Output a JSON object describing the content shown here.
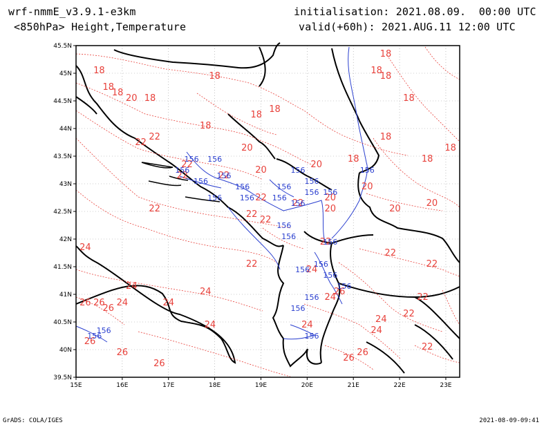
{
  "header": {
    "model": "wrf-nmmE_v3.9.1-e3km",
    "field": "<850hPa> Height,Temperature",
    "init": "initialisation: 2021.08.09.  00:00 UTC",
    "valid": "valid(+60h): 2021.AUG.11 12:00 UTC"
  },
  "footer": {
    "credit": "GrADS: COLA/IGES",
    "timestamp": "2021-08-09-09:41"
  },
  "map": {
    "lon_range": [
      15,
      23.3
    ],
    "lat_range": [
      39.5,
      45.5
    ],
    "lon_ticks": [
      "15E",
      "16E",
      "17E",
      "18E",
      "19E",
      "20E",
      "21E",
      "22E",
      "23E"
    ],
    "lat_ticks": [
      "39.5N",
      "40N",
      "40.5N",
      "41N",
      "41.5N",
      "42N",
      "42.5N",
      "43N",
      "43.5N",
      "44N",
      "44.5N",
      "45N",
      "45.5N"
    ],
    "colors": {
      "temperature": "#e8403a",
      "height": "#2a3fcf",
      "coast": "#000000",
      "grid": "#999999"
    },
    "temperature_labels": [
      {
        "text": "18",
        "lon": 18.0,
        "lat": 44.9
      },
      {
        "text": "18",
        "lon": 15.5,
        "lat": 45.0
      },
      {
        "text": "18",
        "lon": 15.7,
        "lat": 44.7
      },
      {
        "text": "18",
        "lon": 15.9,
        "lat": 44.6
      },
      {
        "text": "18",
        "lon": 16.6,
        "lat": 44.5
      },
      {
        "text": "18",
        "lon": 17.8,
        "lat": 44.0
      },
      {
        "text": "18",
        "lon": 18.9,
        "lat": 44.2
      },
      {
        "text": "18",
        "lon": 19.3,
        "lat": 44.3
      },
      {
        "text": "18",
        "lon": 21.7,
        "lat": 45.3
      },
      {
        "text": "18",
        "lon": 21.5,
        "lat": 45.0
      },
      {
        "text": "18",
        "lon": 21.7,
        "lat": 44.9
      },
      {
        "text": "18",
        "lon": 22.2,
        "lat": 44.5
      },
      {
        "text": "18",
        "lon": 21.7,
        "lat": 43.8
      },
      {
        "text": "18",
        "lon": 22.6,
        "lat": 43.4
      },
      {
        "text": "18",
        "lon": 23.1,
        "lat": 43.6
      },
      {
        "text": "18",
        "lon": 21.0,
        "lat": 43.4
      },
      {
        "text": "20",
        "lon": 16.2,
        "lat": 44.5
      },
      {
        "text": "20",
        "lon": 18.7,
        "lat": 43.6
      },
      {
        "text": "20",
        "lon": 19.0,
        "lat": 43.2
      },
      {
        "text": "20",
        "lon": 20.2,
        "lat": 43.3
      },
      {
        "text": "20",
        "lon": 20.5,
        "lat": 42.7
      },
      {
        "text": "20",
        "lon": 20.5,
        "lat": 42.5
      },
      {
        "text": "20",
        "lon": 21.3,
        "lat": 42.9
      },
      {
        "text": "20",
        "lon": 21.9,
        "lat": 42.5
      },
      {
        "text": "20",
        "lon": 22.7,
        "lat": 42.6
      },
      {
        "text": "22",
        "lon": 16.4,
        "lat": 43.7
      },
      {
        "text": "22",
        "lon": 16.7,
        "lat": 43.8
      },
      {
        "text": "22",
        "lon": 17.4,
        "lat": 43.3
      },
      {
        "text": "22",
        "lon": 17.3,
        "lat": 43.1
      },
      {
        "text": "22",
        "lon": 18.2,
        "lat": 43.1
      },
      {
        "text": "22",
        "lon": 16.7,
        "lat": 42.5
      },
      {
        "text": "22",
        "lon": 18.8,
        "lat": 42.4
      },
      {
        "text": "22",
        "lon": 19.1,
        "lat": 42.3
      },
      {
        "text": "22",
        "lon": 20.4,
        "lat": 41.9
      },
      {
        "text": "22",
        "lon": 19.8,
        "lat": 42.6
      },
      {
        "text": "22",
        "lon": 21.8,
        "lat": 41.7
      },
      {
        "text": "22",
        "lon": 22.7,
        "lat": 41.5
      },
      {
        "text": "22",
        "lon": 22.5,
        "lat": 40.9
      },
      {
        "text": "22",
        "lon": 22.2,
        "lat": 40.6
      },
      {
        "text": "22",
        "lon": 22.6,
        "lat": 40.0
      },
      {
        "text": "22",
        "lon": 18.8,
        "lat": 41.5
      },
      {
        "text": "22",
        "lon": 19.0,
        "lat": 42.7
      },
      {
        "text": "24",
        "lon": 15.2,
        "lat": 41.8
      },
      {
        "text": "24",
        "lon": 16.2,
        "lat": 41.1
      },
      {
        "text": "24",
        "lon": 16.0,
        "lat": 40.8
      },
      {
        "text": "24",
        "lon": 17.8,
        "lat": 41.0
      },
      {
        "text": "24",
        "lon": 17.0,
        "lat": 40.8
      },
      {
        "text": "24",
        "lon": 17.9,
        "lat": 40.4
      },
      {
        "text": "24",
        "lon": 20.1,
        "lat": 41.4
      },
      {
        "text": "24",
        "lon": 20.5,
        "lat": 40.9
      },
      {
        "text": "24",
        "lon": 20.0,
        "lat": 40.4
      },
      {
        "text": "24",
        "lon": 21.5,
        "lat": 40.3
      },
      {
        "text": "24",
        "lon": 21.6,
        "lat": 40.5
      },
      {
        "text": "26",
        "lon": 15.2,
        "lat": 40.8
      },
      {
        "text": "26",
        "lon": 15.5,
        "lat": 40.8
      },
      {
        "text": "26",
        "lon": 15.7,
        "lat": 40.7
      },
      {
        "text": "26",
        "lon": 15.3,
        "lat": 40.1
      },
      {
        "text": "26",
        "lon": 16.0,
        "lat": 39.9
      },
      {
        "text": "26",
        "lon": 16.8,
        "lat": 39.7
      },
      {
        "text": "26",
        "lon": 20.9,
        "lat": 39.8
      },
      {
        "text": "26",
        "lon": 21.2,
        "lat": 39.9
      },
      {
        "text": "26",
        "lon": 20.7,
        "lat": 41.0
      }
    ],
    "height_labels": [
      {
        "text": "156",
        "lon": 17.5,
        "lat": 43.4
      },
      {
        "text": "156",
        "lon": 18.0,
        "lat": 43.4
      },
      {
        "text": "156",
        "lon": 17.3,
        "lat": 43.2
      },
      {
        "text": "156",
        "lon": 17.7,
        "lat": 43.0
      },
      {
        "text": "156",
        "lon": 18.2,
        "lat": 43.1
      },
      {
        "text": "156",
        "lon": 18.0,
        "lat": 42.7
      },
      {
        "text": "156",
        "lon": 18.6,
        "lat": 42.9
      },
      {
        "text": "156",
        "lon": 18.7,
        "lat": 42.7
      },
      {
        "text": "156",
        "lon": 19.8,
        "lat": 43.2
      },
      {
        "text": "156",
        "lon": 20.1,
        "lat": 43.0
      },
      {
        "text": "156",
        "lon": 19.5,
        "lat": 42.9
      },
      {
        "text": "156",
        "lon": 19.4,
        "lat": 42.7
      },
      {
        "text": "156",
        "lon": 20.1,
        "lat": 42.8
      },
      {
        "text": "156",
        "lon": 20.5,
        "lat": 42.8
      },
      {
        "text": "156",
        "lon": 19.8,
        "lat": 42.6
      },
      {
        "text": "156",
        "lon": 19.5,
        "lat": 42.2
      },
      {
        "text": "156",
        "lon": 19.6,
        "lat": 42.0
      },
      {
        "text": "156",
        "lon": 20.5,
        "lat": 41.9
      },
      {
        "text": "156",
        "lon": 19.9,
        "lat": 41.4
      },
      {
        "text": "156",
        "lon": 20.3,
        "lat": 41.5
      },
      {
        "text": "156",
        "lon": 20.5,
        "lat": 41.3
      },
      {
        "text": "156",
        "lon": 20.8,
        "lat": 41.1
      },
      {
        "text": "156",
        "lon": 19.8,
        "lat": 40.7
      },
      {
        "text": "156",
        "lon": 20.1,
        "lat": 40.9
      },
      {
        "text": "156",
        "lon": 21.3,
        "lat": 43.2
      },
      {
        "text": "156",
        "lon": 20.1,
        "lat": 40.2
      },
      {
        "text": "156",
        "lon": 15.4,
        "lat": 40.2
      },
      {
        "text": "156",
        "lon": 15.6,
        "lat": 40.3
      }
    ]
  }
}
